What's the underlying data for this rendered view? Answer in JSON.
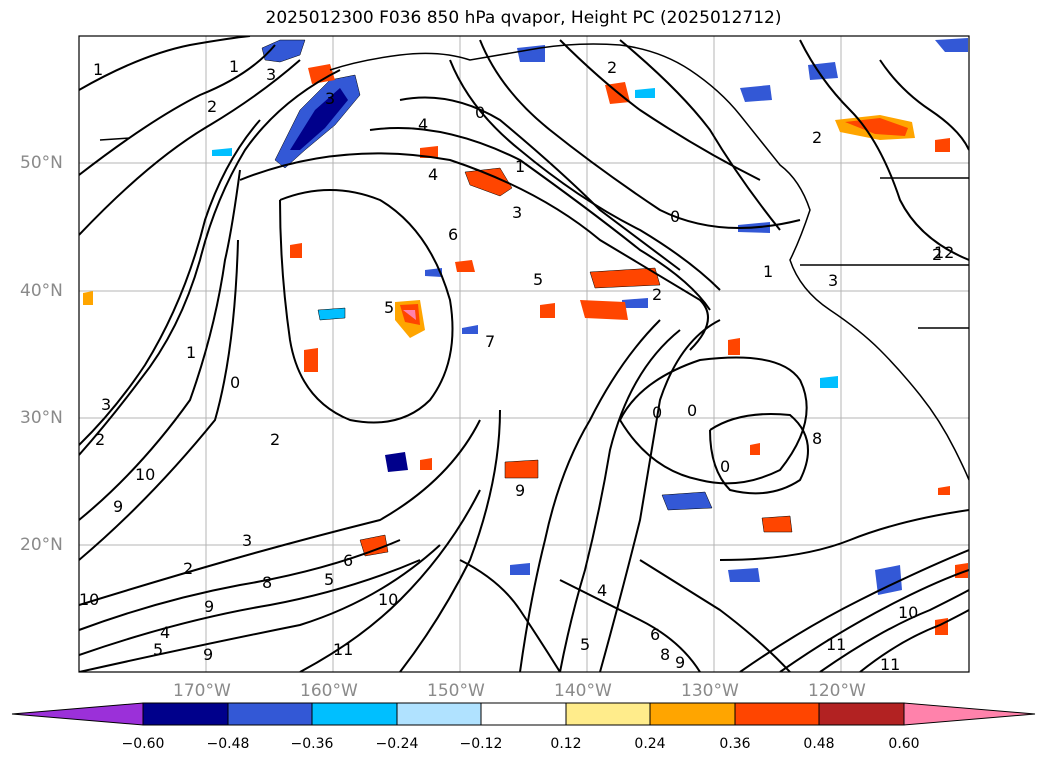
{
  "title": "2025012300 F036 850 hPa qvapor, Height PC (2025012712)",
  "lat_labels": [
    "50°N",
    "40°N",
    "30°N",
    "20°N"
  ],
  "lon_labels": [
    "170°W",
    "160°W",
    "150°W",
    "140°W",
    "130°W",
    "120°W"
  ],
  "colorbar": {
    "ticks": [
      "−0.60",
      "−0.48",
      "−0.36",
      "−0.24",
      "−0.12",
      "0.12",
      "0.24",
      "0.36",
      "0.48",
      "0.60"
    ],
    "colors": [
      "#9b30d9",
      "#00008b",
      "#3358d6",
      "#00bfff",
      "#b0e2ff",
      "#ffffff",
      "#ffec8b",
      "#ffa500",
      "#ff4500",
      "#b22222",
      "#ff82ab"
    ],
    "extend": "both"
  },
  "contour_labels": [
    "1",
    "2",
    "3",
    "1",
    "2",
    "3",
    "4",
    "0",
    "1",
    "2",
    "3",
    "0",
    "4",
    "5",
    "2",
    "5",
    "7",
    "0",
    "0",
    "0",
    "8",
    "6",
    "1",
    "3",
    "2",
    "3",
    "1",
    "0",
    "2",
    "2",
    "10",
    "9",
    "3",
    "2",
    "8",
    "9",
    "10",
    "4",
    "5",
    "5",
    "6",
    "10",
    "11",
    "4",
    "5",
    "6",
    "8",
    "9",
    "9",
    "10",
    "11",
    "11",
    "12",
    "9"
  ]
}
